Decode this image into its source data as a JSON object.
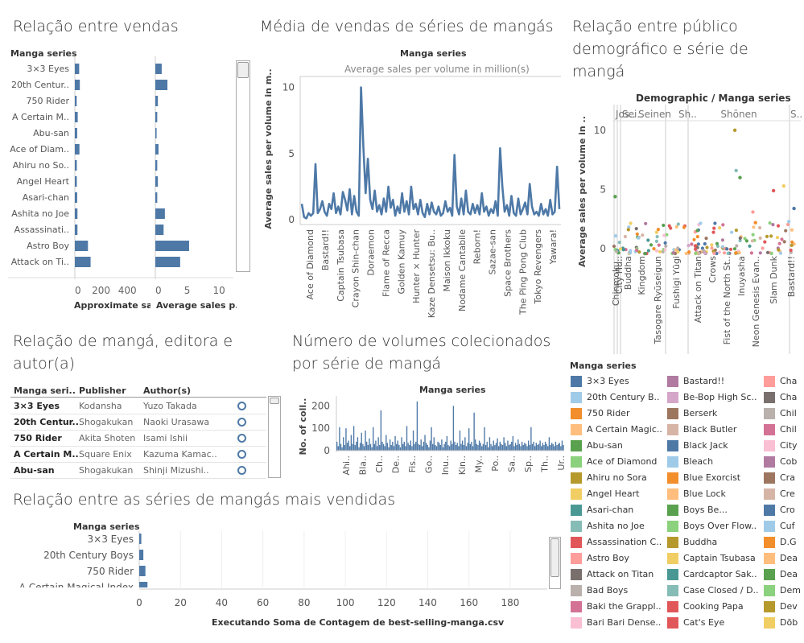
{
  "titles": {
    "vendas": "Relação entre vendas",
    "media": "Média de vendas de séries de mangás",
    "publico": "Relação entre público demográfico e série de mangá",
    "editora": "Relação de mangá, editora e autor(a)",
    "volumes": "Número de volumes colecionados por série de mangá",
    "mais_vendidas": "Relação entre as séries de mangás mais vendidas"
  },
  "chart_vendas": {
    "type": "bar",
    "header": "Manga series",
    "categories": [
      "3×3 Eyes",
      "20th Centur..",
      "750 Rider",
      "A Certain M..",
      "Abu-san",
      "Ace of Diam..",
      "Ahiru no So..",
      "Angel Heart",
      "Asari-chan",
      "Ashita no Joe",
      "Assassinati..",
      "Astro Boy",
      "Attack on Ti.."
    ],
    "series": [
      {
        "name": "Approximate sal..",
        "values": [
          33,
          38,
          14,
          22,
          18,
          35,
          15,
          15,
          18,
          20,
          20,
          100,
          120
        ],
        "ticks": [
          "0",
          "200",
          "400"
        ],
        "xlim": [
          0,
          540
        ]
      },
      {
        "name": "Average sales p..",
        "values": [
          1.0,
          1.9,
          0.4,
          0.3,
          0.2,
          0.5,
          0.3,
          0.4,
          0.3,
          1.5,
          1.3,
          5.3,
          3.9
        ],
        "ticks": [
          "0",
          "5",
          "10"
        ],
        "xlim": [
          0,
          12
        ]
      }
    ]
  },
  "chart_media": {
    "type": "line",
    "header": "Manga series",
    "subtitle": "Average sales per volume in million(s)",
    "ylabel": "Average sales per volume in m..",
    "yticks": [
      0,
      5,
      10
    ],
    "ylim": [
      0,
      10.7
    ],
    "xticks": [
      "Ace of Diamond",
      "Bastard!!",
      "Captain Tsubasa",
      "Crayon Shin-chan",
      "Doraemon",
      "Flame of Recca",
      "Golden Kamuy",
      "Hunter × Hunter",
      "Kaze Densetsu: Bu..",
      "Maison Ikkoku",
      "Nodame Cantabile",
      "Reborn!",
      "Sazae-san",
      "Space Brothers",
      "The Ping Pong Club",
      "Tokyo Revengers",
      "Yawara!"
    ],
    "values": [
      1.2,
      0.2,
      0.1,
      0.5,
      0.3,
      0.5,
      4.2,
      0.5,
      0.8,
      1.4,
      0.6,
      0.3,
      1.2,
      0.8,
      2.0,
      0.5,
      1.0,
      0.4,
      2.1,
      1.5,
      0.7,
      2.3,
      0.4,
      1.8,
      0.6,
      0.3,
      10.0,
      5.5,
      2.0,
      4.6,
      1.5,
      0.8,
      2.2,
      0.6,
      1.1,
      0.4,
      1.6,
      0.6,
      2.5,
      0.9,
      1.5,
      0.3,
      1.0,
      0.5,
      2.0,
      0.6,
      1.4,
      0.4,
      2.5,
      0.8,
      1.2,
      0.4,
      1.5,
      0.5,
      0.2,
      1.2,
      0.4,
      1.3,
      0.6,
      0.4,
      1.0,
      0.3,
      0.5,
      1.4,
      0.6,
      0.9,
      0.3,
      4.9,
      1.0,
      0.4,
      1.6,
      0.4,
      2.2,
      0.6,
      0.4,
      1.2,
      0.5,
      1.1,
      0.4,
      2.0,
      0.6,
      1.0,
      0.3,
      0.8,
      0.5,
      1.4,
      0.3,
      5.4,
      2.5,
      0.6,
      1.1,
      0.3,
      1.8,
      0.5,
      0.3,
      1.6,
      0.4,
      0.8,
      1.3,
      0.4,
      2.7,
      1.0,
      0.4,
      0.6,
      0.3,
      1.2,
      0.4,
      0.8,
      0.3,
      1.5,
      0.4,
      0.6,
      4.0,
      0.8
    ]
  },
  "chart_publico": {
    "type": "scatter",
    "header": "Demographic  /  Manga series",
    "ylabel": "Average sales per volume in ..",
    "yticks": [
      0,
      5,
      10
    ],
    "ylim": [
      -0.6,
      10.8
    ],
    "groups": [
      "Jos..",
      "Sei..",
      "Seinen",
      "Sh..",
      "Shōnen",
      "S.."
    ],
    "xticks": [
      "Chinmoku..",
      "City Hu..",
      "Buddha",
      "Kingdom",
      "Tasogare Ryūseigun",
      "Fushigi Yūgi",
      "Attack on Titan",
      "Crows",
      "Fist of the North St..",
      "Inuyasha",
      "Neon Genesis Evan..",
      "Slam Dunk",
      "Bastard!!"
    ],
    "highlights": [
      {
        "x": 0.4,
        "y": 4.4,
        "color": "#59a14f"
      },
      {
        "x": 47.0,
        "y": 10.0,
        "color": "#b6992d"
      },
      {
        "x": 47.5,
        "y": 6.6,
        "color": "#86bcb6"
      },
      {
        "x": 49.0,
        "y": 6.0,
        "color": "#59a14f"
      },
      {
        "x": 54.0,
        "y": 3.1,
        "color": "#ff9d9a"
      },
      {
        "x": 55.0,
        "y": 2.2,
        "color": "#f28e2b"
      },
      {
        "x": 62.0,
        "y": 4.9,
        "color": "#e15759"
      },
      {
        "x": 66.0,
        "y": 5.3,
        "color": "#f1ce63"
      },
      {
        "x": 68.0,
        "y": 2.3,
        "color": "#a0cbe8"
      },
      {
        "x": 70.0,
        "y": 3.4,
        "color": "#4e79a7"
      }
    ]
  },
  "table_editora": {
    "columns": [
      "Manga seri..",
      "Publisher",
      "Author(s)"
    ],
    "rows": [
      [
        "3×3 Eyes",
        "Kodansha",
        "Yuzo Takada"
      ],
      [
        "20th Centur..",
        "Shogakukan",
        "Naoki Urasawa"
      ],
      [
        "750 Rider",
        "Akita Shoten",
        "Isami Ishii"
      ],
      [
        "A Certain M..",
        "Square Enix",
        "Kazuma Kamac.."
      ],
      [
        "Abu-san",
        "Shogakukan",
        "Shinji Mizushi.."
      ]
    ]
  },
  "chart_volumes": {
    "type": "bar",
    "header": "Manga series",
    "ylabel": "No. of coll..",
    "yticks": [
      0,
      100,
      200
    ],
    "ylim": [
      0,
      230
    ],
    "xticks": [
      "Ahi..",
      "Bla..",
      "Ch..",
      "De..",
      "Fis..",
      "Go..",
      "Inu..",
      "Kin..",
      "My..",
      "Po..",
      "Sa..",
      "Sp..",
      "Th..",
      "Ur.."
    ],
    "values": [
      40,
      20,
      105,
      30,
      15,
      60,
      25,
      100,
      35,
      45,
      20,
      70,
      30,
      110,
      25,
      40,
      60,
      15,
      35,
      80,
      30,
      20,
      90,
      40,
      25,
      55,
      30,
      15,
      105,
      30,
      45,
      20,
      60,
      25,
      180,
      40,
      30,
      20,
      70,
      35,
      15,
      50,
      25,
      40,
      20,
      65,
      30,
      45,
      25,
      15,
      60,
      30,
      40,
      20,
      110,
      35,
      25,
      45,
      20,
      90,
      30,
      40,
      220,
      30,
      25,
      50,
      20,
      40,
      70,
      35,
      25,
      15,
      45,
      105,
      30,
      60,
      25,
      20,
      40,
      35,
      25,
      50,
      15,
      30,
      40,
      65,
      25,
      20,
      45,
      30,
      200,
      40,
      25,
      35,
      20,
      90,
      30,
      45,
      25,
      60,
      20,
      35,
      100,
      30,
      40,
      20,
      170,
      50,
      30,
      25,
      45,
      35,
      20,
      30,
      105,
      25,
      40,
      15,
      60,
      30,
      20,
      45,
      25,
      35,
      55,
      20,
      40,
      30,
      25,
      60,
      35,
      20,
      45,
      25,
      30,
      40,
      65,
      20,
      35,
      25,
      50,
      30,
      20,
      40,
      25,
      35,
      30,
      20,
      45,
      25,
      105,
      30,
      40,
      20,
      35,
      25,
      30,
      45,
      20,
      35,
      25,
      40,
      30,
      20,
      60,
      25,
      35,
      30,
      20,
      40,
      25,
      30,
      35,
      20,
      45,
      25
    ]
  },
  "chart_mais_vendidas": {
    "type": "bar",
    "header": "Manga series",
    "categories": [
      "3×3 Eyes",
      "20th Century Boys",
      "750 Rider",
      "A Certain Magical Index"
    ],
    "values": [
      1,
      2,
      3,
      4
    ],
    "xticks": [
      0,
      20,
      40,
      60,
      80,
      100,
      120,
      140,
      160,
      180
    ],
    "xlim": [
      0,
      198
    ],
    "footer": "Executando Soma de Contagem de best-selling-manga.csv"
  },
  "legend": {
    "title": "Manga series",
    "items": [
      {
        "label": "3×3 Eyes",
        "color": "#4e79a7"
      },
      {
        "label": "20th Century B..",
        "color": "#a0cbe8"
      },
      {
        "label": "750 Rider",
        "color": "#f28e2b"
      },
      {
        "label": "A Certain Magic..",
        "color": "#ffbe7d"
      },
      {
        "label": "Abu-san",
        "color": "#59a14f"
      },
      {
        "label": "Ace of Diamond",
        "color": "#8cd17d"
      },
      {
        "label": "Ahiru no Sora",
        "color": "#b6992d"
      },
      {
        "label": "Angel Heart",
        "color": "#f1ce63"
      },
      {
        "label": "Asari-chan",
        "color": "#499894"
      },
      {
        "label": "Ashita no Joe",
        "color": "#86bcb6"
      },
      {
        "label": "Assassination C..",
        "color": "#e15759"
      },
      {
        "label": "Astro Boy",
        "color": "#ff9d9a"
      },
      {
        "label": "Attack on Titan",
        "color": "#79706e"
      },
      {
        "label": "Bad Boys",
        "color": "#bab0ac"
      },
      {
        "label": "Baki the Grappl..",
        "color": "#d37295"
      },
      {
        "label": "Bari Bari Dense..",
        "color": "#fabfd2"
      },
      {
        "label": "Bastard!!",
        "color": "#b07aa1"
      },
      {
        "label": "Be-Bop High Sc..",
        "color": "#d4a6c8"
      },
      {
        "label": "Berserk",
        "color": "#9d7660"
      },
      {
        "label": "Black Butler",
        "color": "#d7b5a6"
      },
      {
        "label": "Black Jack",
        "color": "#4e79a7"
      },
      {
        "label": "Bleach",
        "color": "#a0cbe8"
      },
      {
        "label": "Blue Exorcist",
        "color": "#f28e2b"
      },
      {
        "label": "Blue Lock",
        "color": "#ffbe7d"
      },
      {
        "label": "Boys Be...",
        "color": "#59a14f"
      },
      {
        "label": "Boys Over Flow..",
        "color": "#8cd17d"
      },
      {
        "label": "Buddha",
        "color": "#b6992d"
      },
      {
        "label": "Captain Tsubasa",
        "color": "#f1ce63"
      },
      {
        "label": "Cardcaptor Sak..",
        "color": "#499894"
      },
      {
        "label": "Case Closed / D..",
        "color": "#86bcb6"
      },
      {
        "label": "Cooking Papa",
        "color": "#e15759"
      },
      {
        "label": "Cat's Eye",
        "color": "#e15759"
      },
      {
        "label": "Cha",
        "color": "#ff9d9a"
      },
      {
        "label": "Cha",
        "color": "#79706e"
      },
      {
        "label": "Chil",
        "color": "#bab0ac"
      },
      {
        "label": "Chil",
        "color": "#d37295"
      },
      {
        "label": "City",
        "color": "#fabfd2"
      },
      {
        "label": "Cob",
        "color": "#b07aa1"
      },
      {
        "label": "Cra",
        "color": "#9d7660"
      },
      {
        "label": "Cre",
        "color": "#d7b5a6"
      },
      {
        "label": "Cro",
        "color": "#4e79a7"
      },
      {
        "label": "Cuf",
        "color": "#a0cbe8"
      },
      {
        "label": "D.G",
        "color": "#f28e2b"
      },
      {
        "label": "Dea",
        "color": "#ffbe7d"
      },
      {
        "label": "Dea",
        "color": "#59a14f"
      },
      {
        "label": "Dem",
        "color": "#8cd17d"
      },
      {
        "label": "Dev",
        "color": "#b6992d"
      },
      {
        "label": "Dōb",
        "color": "#f1ce63"
      }
    ]
  }
}
